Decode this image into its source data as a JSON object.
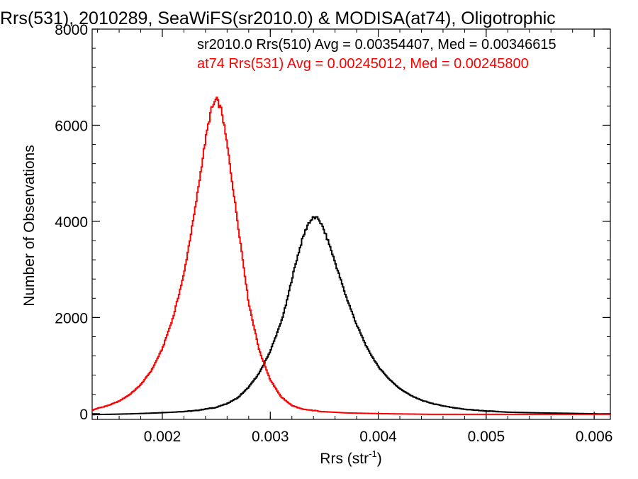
{
  "chart_data": {
    "type": "line",
    "title": "Rrs(531), 2010289, SeaWiFS(sr2010.0) & MODISA(at74), Oligotrophic",
    "xlabel": "Rrs (str",
    "xlabel_sup": "-1",
    "xlabel_suffix": ")",
    "ylabel": "Number of Observations",
    "xlim": [
      0.00135,
      0.00615
    ],
    "ylim": [
      -120,
      8000
    ],
    "x_ticks": [
      0.002,
      0.003,
      0.004,
      0.005,
      0.006
    ],
    "x_tick_labels": [
      "0.002",
      "0.003",
      "0.004",
      "0.005",
      "0.006"
    ],
    "y_ticks": [
      0,
      2000,
      4000,
      6000,
      8000
    ],
    "y_tick_labels": [
      "0",
      "2000",
      "4000",
      "6000",
      "8000"
    ],
    "grid": false,
    "legend_position": "top-right",
    "series": [
      {
        "label": "sr2010.0 Rrs(510) Avg = 0.00354407, Med = 0.00346615",
        "color": "#000000",
        "points": [
          [
            0.00135,
            -20
          ],
          [
            0.0015,
            -15
          ],
          [
            0.0017,
            -5
          ],
          [
            0.0019,
            10
          ],
          [
            0.0021,
            30
          ],
          [
            0.0023,
            60
          ],
          [
            0.0025,
            130
          ],
          [
            0.0026,
            210
          ],
          [
            0.0027,
            330
          ],
          [
            0.0028,
            550
          ],
          [
            0.0029,
            850
          ],
          [
            0.003,
            1300
          ],
          [
            0.0031,
            1900
          ],
          [
            0.00315,
            2300
          ],
          [
            0.0032,
            2800
          ],
          [
            0.00325,
            3250
          ],
          [
            0.0033,
            3650
          ],
          [
            0.00335,
            3950
          ],
          [
            0.0034,
            4080
          ],
          [
            0.00345,
            4050
          ],
          [
            0.0035,
            3800
          ],
          [
            0.00355,
            3500
          ],
          [
            0.0036,
            3150
          ],
          [
            0.00365,
            2800
          ],
          [
            0.0037,
            2450
          ],
          [
            0.0038,
            1850
          ],
          [
            0.0039,
            1350
          ],
          [
            0.004,
            980
          ],
          [
            0.0041,
            720
          ],
          [
            0.0042,
            520
          ],
          [
            0.0043,
            380
          ],
          [
            0.0044,
            280
          ],
          [
            0.0045,
            210
          ],
          [
            0.0046,
            160
          ],
          [
            0.0047,
            120
          ],
          [
            0.0048,
            90
          ],
          [
            0.005,
            55
          ],
          [
            0.0052,
            30
          ],
          [
            0.0055,
            15
          ],
          [
            0.0058,
            5
          ],
          [
            0.00615,
            -10
          ]
        ]
      },
      {
        "label": "at74 Rrs(531) Avg = 0.00245012, Med = 0.00245800",
        "color": "#ff0000",
        "points": [
          [
            0.00135,
            70
          ],
          [
            0.0014,
            110
          ],
          [
            0.0015,
            170
          ],
          [
            0.0016,
            260
          ],
          [
            0.0017,
            400
          ],
          [
            0.0018,
            600
          ],
          [
            0.0019,
            900
          ],
          [
            0.002,
            1350
          ],
          [
            0.0021,
            2000
          ],
          [
            0.0022,
            2900
          ],
          [
            0.0023,
            4200
          ],
          [
            0.0024,
            5700
          ],
          [
            0.00245,
            6300
          ],
          [
            0.0025,
            6550
          ],
          [
            0.00255,
            6300
          ],
          [
            0.0026,
            5600
          ],
          [
            0.0027,
            3950
          ],
          [
            0.0028,
            2300
          ],
          [
            0.0029,
            1300
          ],
          [
            0.003,
            700
          ],
          [
            0.0031,
            350
          ],
          [
            0.0032,
            170
          ],
          [
            0.0033,
            90
          ],
          [
            0.0035,
            40
          ],
          [
            0.0037,
            15
          ],
          [
            0.004,
            0
          ],
          [
            0.0045,
            -15
          ],
          [
            0.005,
            -15
          ],
          [
            0.00615,
            -15
          ]
        ]
      }
    ]
  }
}
